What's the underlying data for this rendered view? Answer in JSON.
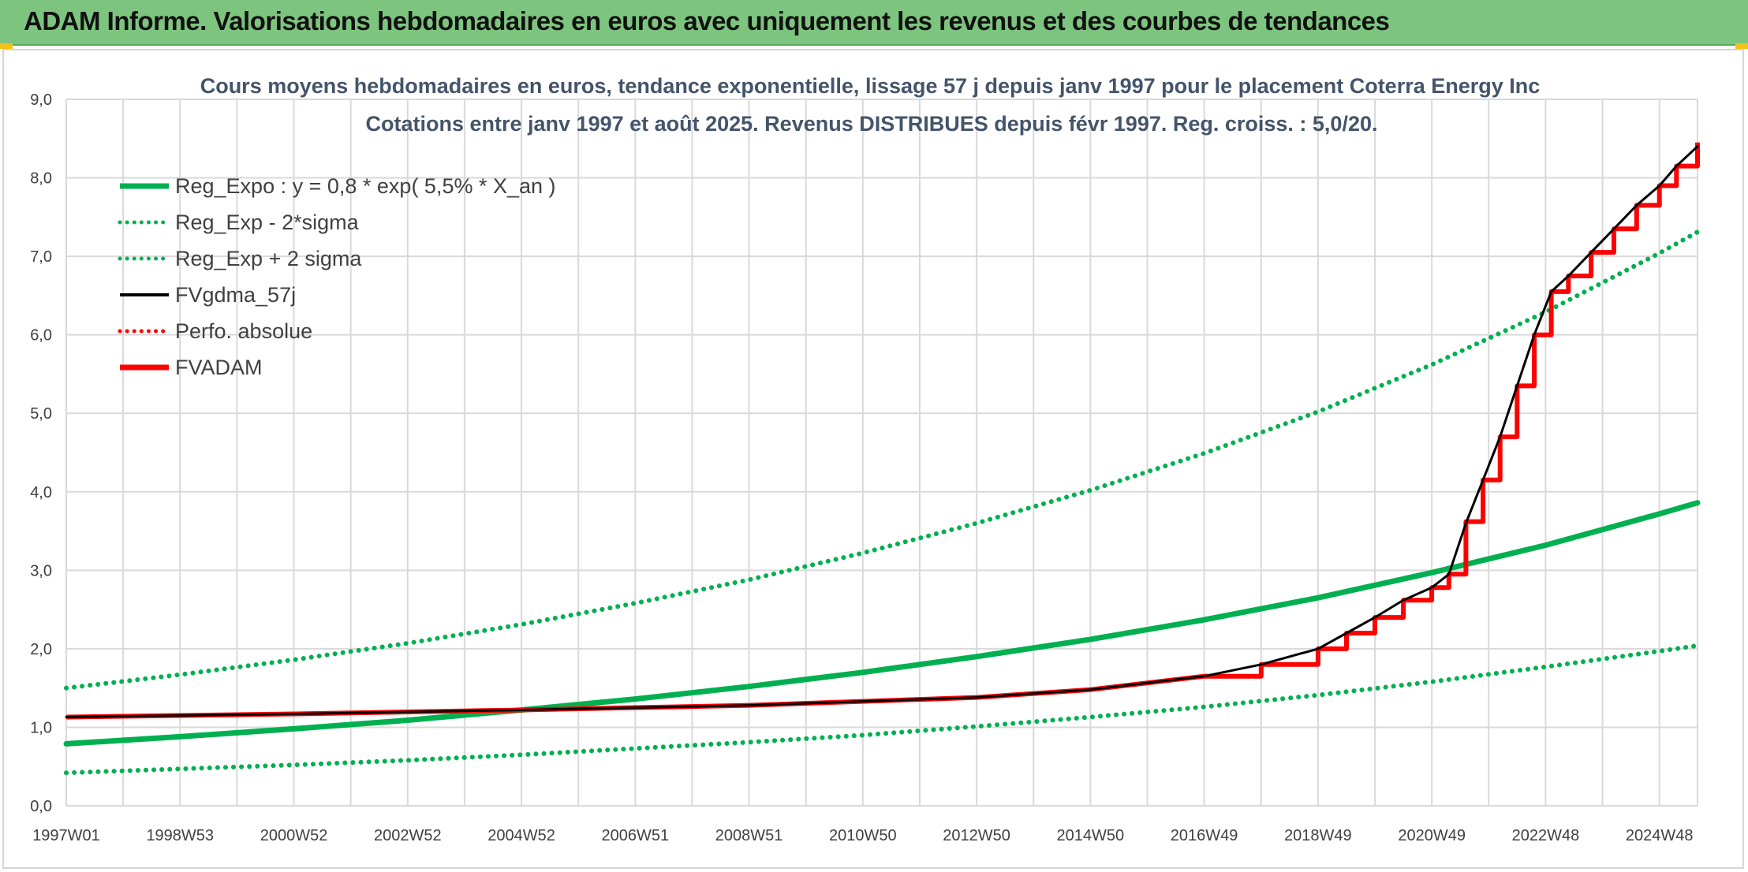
{
  "header": {
    "title": "ADAM Informe. Valorisations hebdomadaires en euros avec uniquement les revenus et des courbes de tendances"
  },
  "chart_data": {
    "type": "line",
    "title": "Cours moyens hebdomadaires en euros, tendance exponentielle, lissage 57 j depuis janv 1997 pour le placement Coterra Energy Inc",
    "subtitle": "Cotations entre janv 1997 et août 2025. Revenus DISTRIBUES depuis févr 1997. Reg. croiss. : 5,0/20.",
    "xlabel": "",
    "ylabel": "",
    "x_range": [
      1997.0,
      2025.67
    ],
    "ylim": [
      0,
      9
    ],
    "y_ticks": [
      "0,0",
      "1,0",
      "2,0",
      "3,0",
      "4,0",
      "5,0",
      "6,0",
      "7,0",
      "8,0",
      "9,0"
    ],
    "x_ticks": [
      {
        "label": "1997W01",
        "x": 1997.0
      },
      {
        "label": "1998W53",
        "x": 1999.0
      },
      {
        "label": "2000W52",
        "x": 2001.0
      },
      {
        "label": "2002W52",
        "x": 2003.0
      },
      {
        "label": "2004W52",
        "x": 2005.0
      },
      {
        "label": "2006W51",
        "x": 2007.0
      },
      {
        "label": "2008W51",
        "x": 2009.0
      },
      {
        "label": "2010W50",
        "x": 2011.0
      },
      {
        "label": "2012W50",
        "x": 2013.0
      },
      {
        "label": "2014W50",
        "x": 2015.0
      },
      {
        "label": "2016W49",
        "x": 2017.0
      },
      {
        "label": "2018W49",
        "x": 2019.0
      },
      {
        "label": "2020W49",
        "x": 2021.0
      },
      {
        "label": "2022W48",
        "x": 2023.0
      },
      {
        "label": "2024W48",
        "x": 2025.0
      }
    ],
    "grid": true,
    "legend_position": "top-left",
    "legend": [
      {
        "label": "Reg_Expo : y = 0,8 * exp( 5,5% *  X_an )",
        "color": "#00b050",
        "style": "solid-thick"
      },
      {
        "label": "Reg_Exp - 2*sigma",
        "color": "#00b050",
        "style": "dotted"
      },
      {
        "label": "Reg_Exp + 2 sigma",
        "color": "#00b050",
        "style": "dotted"
      },
      {
        "label": "FVgdma_57j",
        "color": "#000000",
        "style": "solid"
      },
      {
        "label": "Perfo. absolue",
        "color": "#ff0000",
        "style": "dotted"
      },
      {
        "label": "FVADAM",
        "color": "#ff0000",
        "style": "solid-thick"
      }
    ],
    "series": [
      {
        "name": "Reg_Expo : y = 0,8 * exp( 5,5% *  X_an )",
        "color": "#00b050",
        "x": [
          1997.0,
          1999.0,
          2001.0,
          2003.0,
          2005.0,
          2007.0,
          2009.0,
          2011.0,
          2013.0,
          2015.0,
          2017.0,
          2019.0,
          2021.0,
          2023.0,
          2025.0,
          2025.67
        ],
        "values": [
          0.79,
          0.88,
          0.98,
          1.09,
          1.22,
          1.36,
          1.52,
          1.7,
          1.9,
          2.12,
          2.37,
          2.65,
          2.97,
          3.32,
          3.72,
          3.86
        ]
      },
      {
        "name": "Reg_Exp - 2*sigma",
        "color": "#00b050",
        "x": [
          1997.0,
          1999.0,
          2001.0,
          2003.0,
          2005.0,
          2007.0,
          2009.0,
          2011.0,
          2013.0,
          2015.0,
          2017.0,
          2019.0,
          2021.0,
          2023.0,
          2025.0,
          2025.67
        ],
        "values": [
          0.42,
          0.47,
          0.52,
          0.58,
          0.65,
          0.73,
          0.81,
          0.9,
          1.01,
          1.13,
          1.26,
          1.41,
          1.58,
          1.77,
          1.97,
          2.04
        ]
      },
      {
        "name": "Reg_Exp + 2 sigma",
        "color": "#00b050",
        "x": [
          1997.0,
          1999.0,
          2001.0,
          2003.0,
          2005.0,
          2007.0,
          2009.0,
          2011.0,
          2013.0,
          2015.0,
          2017.0,
          2019.0,
          2021.0,
          2023.0,
          2025.0,
          2025.67
        ],
        "values": [
          1.5,
          1.67,
          1.86,
          2.07,
          2.31,
          2.58,
          2.88,
          3.22,
          3.6,
          4.02,
          4.49,
          5.02,
          5.62,
          6.29,
          7.04,
          7.31
        ]
      },
      {
        "name": "FVgdma_57j",
        "color": "#000000",
        "x": [
          1997.0,
          2001.0,
          2005.0,
          2009.0,
          2013.0,
          2015.0,
          2017.0,
          2018.0,
          2019.0,
          2019.5,
          2020.0,
          2020.5,
          2021.0,
          2021.3,
          2021.6,
          2021.9,
          2022.2,
          2022.5,
          2022.8,
          2023.1,
          2023.4,
          2023.8,
          2024.2,
          2024.6,
          2025.0,
          2025.3,
          2025.67
        ],
        "values": [
          1.13,
          1.17,
          1.22,
          1.28,
          1.38,
          1.48,
          1.65,
          1.8,
          2.0,
          2.2,
          2.4,
          2.62,
          2.78,
          2.95,
          3.6,
          4.15,
          4.7,
          5.35,
          6.0,
          6.55,
          6.75,
          7.05,
          7.35,
          7.65,
          7.9,
          8.15,
          8.4
        ]
      },
      {
        "name": "FVADAM",
        "color": "#ff0000",
        "x": [
          1997.0,
          2001.0,
          2005.0,
          2009.0,
          2013.0,
          2015.0,
          2017.0,
          2018.0,
          2019.0,
          2019.5,
          2020.0,
          2020.5,
          2021.0,
          2021.3,
          2021.6,
          2021.9,
          2022.2,
          2022.5,
          2022.8,
          2023.1,
          2023.4,
          2023.8,
          2024.2,
          2024.6,
          2025.0,
          2025.3,
          2025.67
        ],
        "values": [
          1.13,
          1.17,
          1.22,
          1.28,
          1.38,
          1.48,
          1.65,
          1.8,
          2.0,
          2.2,
          2.4,
          2.62,
          2.78,
          2.95,
          3.62,
          4.15,
          4.7,
          5.35,
          6.0,
          6.55,
          6.75,
          7.05,
          7.35,
          7.65,
          7.9,
          8.15,
          8.45
        ]
      }
    ]
  }
}
